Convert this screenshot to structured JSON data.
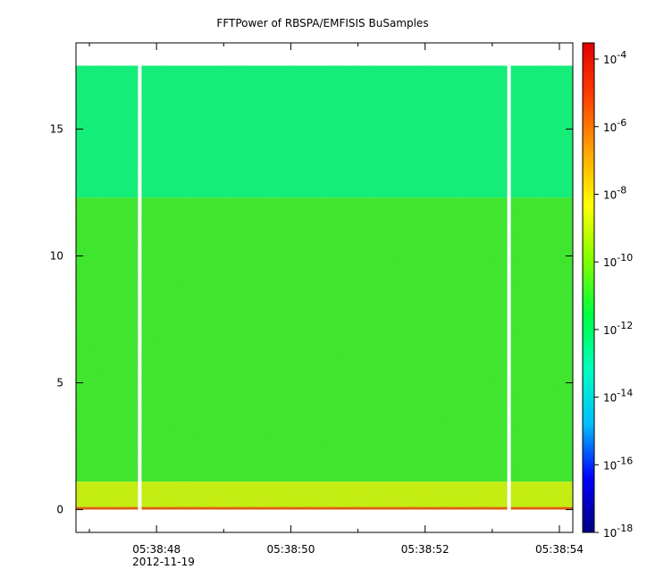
{
  "chart_data": {
    "type": "heatmap",
    "title": "FFTPower of RBSPA/EMFISIS  BuSamples",
    "xlabel": "",
    "ylabel": "",
    "x_range": [
      "05:38:46.8",
      "05:38:54.2"
    ],
    "x_ticks": [
      {
        "value": "05:38:48",
        "label": "05:38:48",
        "sublabel": "2012-11-19"
      },
      {
        "value": "05:38:50",
        "label": "05:38:50",
        "sublabel": ""
      },
      {
        "value": "05:38:52",
        "label": "05:38:52",
        "sublabel": ""
      },
      {
        "value": "05:38:54",
        "label": "05:38:54",
        "sublabel": ""
      }
    ],
    "x_minor_ticks": [
      "05:38:47",
      "05:38:49",
      "05:38:51",
      "05:38:53"
    ],
    "ylim": [
      -0.9,
      18.4
    ],
    "y_ticks": [
      0,
      5,
      10,
      15
    ],
    "y_data_range": [
      0,
      17.5
    ],
    "colorbar": {
      "scale": "log",
      "range": [
        1e-18,
        0.0003
      ],
      "ticks": [
        {
          "value": 0.0001,
          "base": "10",
          "exp": "-4"
        },
        {
          "value": 1e-06,
          "base": "10",
          "exp": "-6"
        },
        {
          "value": 1e-08,
          "base": "10",
          "exp": "-8"
        },
        {
          "value": 1e-10,
          "base": "10",
          "exp": "-10"
        },
        {
          "value": 1e-12,
          "base": "10",
          "exp": "-12"
        },
        {
          "value": 1e-14,
          "base": "10",
          "exp": "-14"
        },
        {
          "value": 1e-16,
          "base": "10",
          "exp": "-16"
        },
        {
          "value": 1e-18,
          "base": "10",
          "exp": "-18"
        }
      ],
      "colormap": [
        "#00007f",
        "#0000ff",
        "#00bfff",
        "#00ffbf",
        "#00ff40",
        "#80ff00",
        "#ffff00",
        "#ffa500",
        "#ff4000",
        "#e00000"
      ]
    },
    "bands": [
      {
        "y_from": 12.3,
        "y_to": 17.5,
        "level": 1e-12,
        "color": "#12f07a"
      },
      {
        "y_from": 1.1,
        "y_to": 12.3,
        "level": 1e-10,
        "color": "#3fe72d"
      },
      {
        "y_from": 0.1,
        "y_to": 1.1,
        "level": 1e-08,
        "color": "#c8ef10"
      },
      {
        "y_from": 0,
        "y_to": 0.1,
        "level": 1e-06,
        "color": "#e35c0b"
      }
    ],
    "gaps_x": [
      "05:38:47.75",
      "05:38:53.25"
    ],
    "grid": false
  }
}
